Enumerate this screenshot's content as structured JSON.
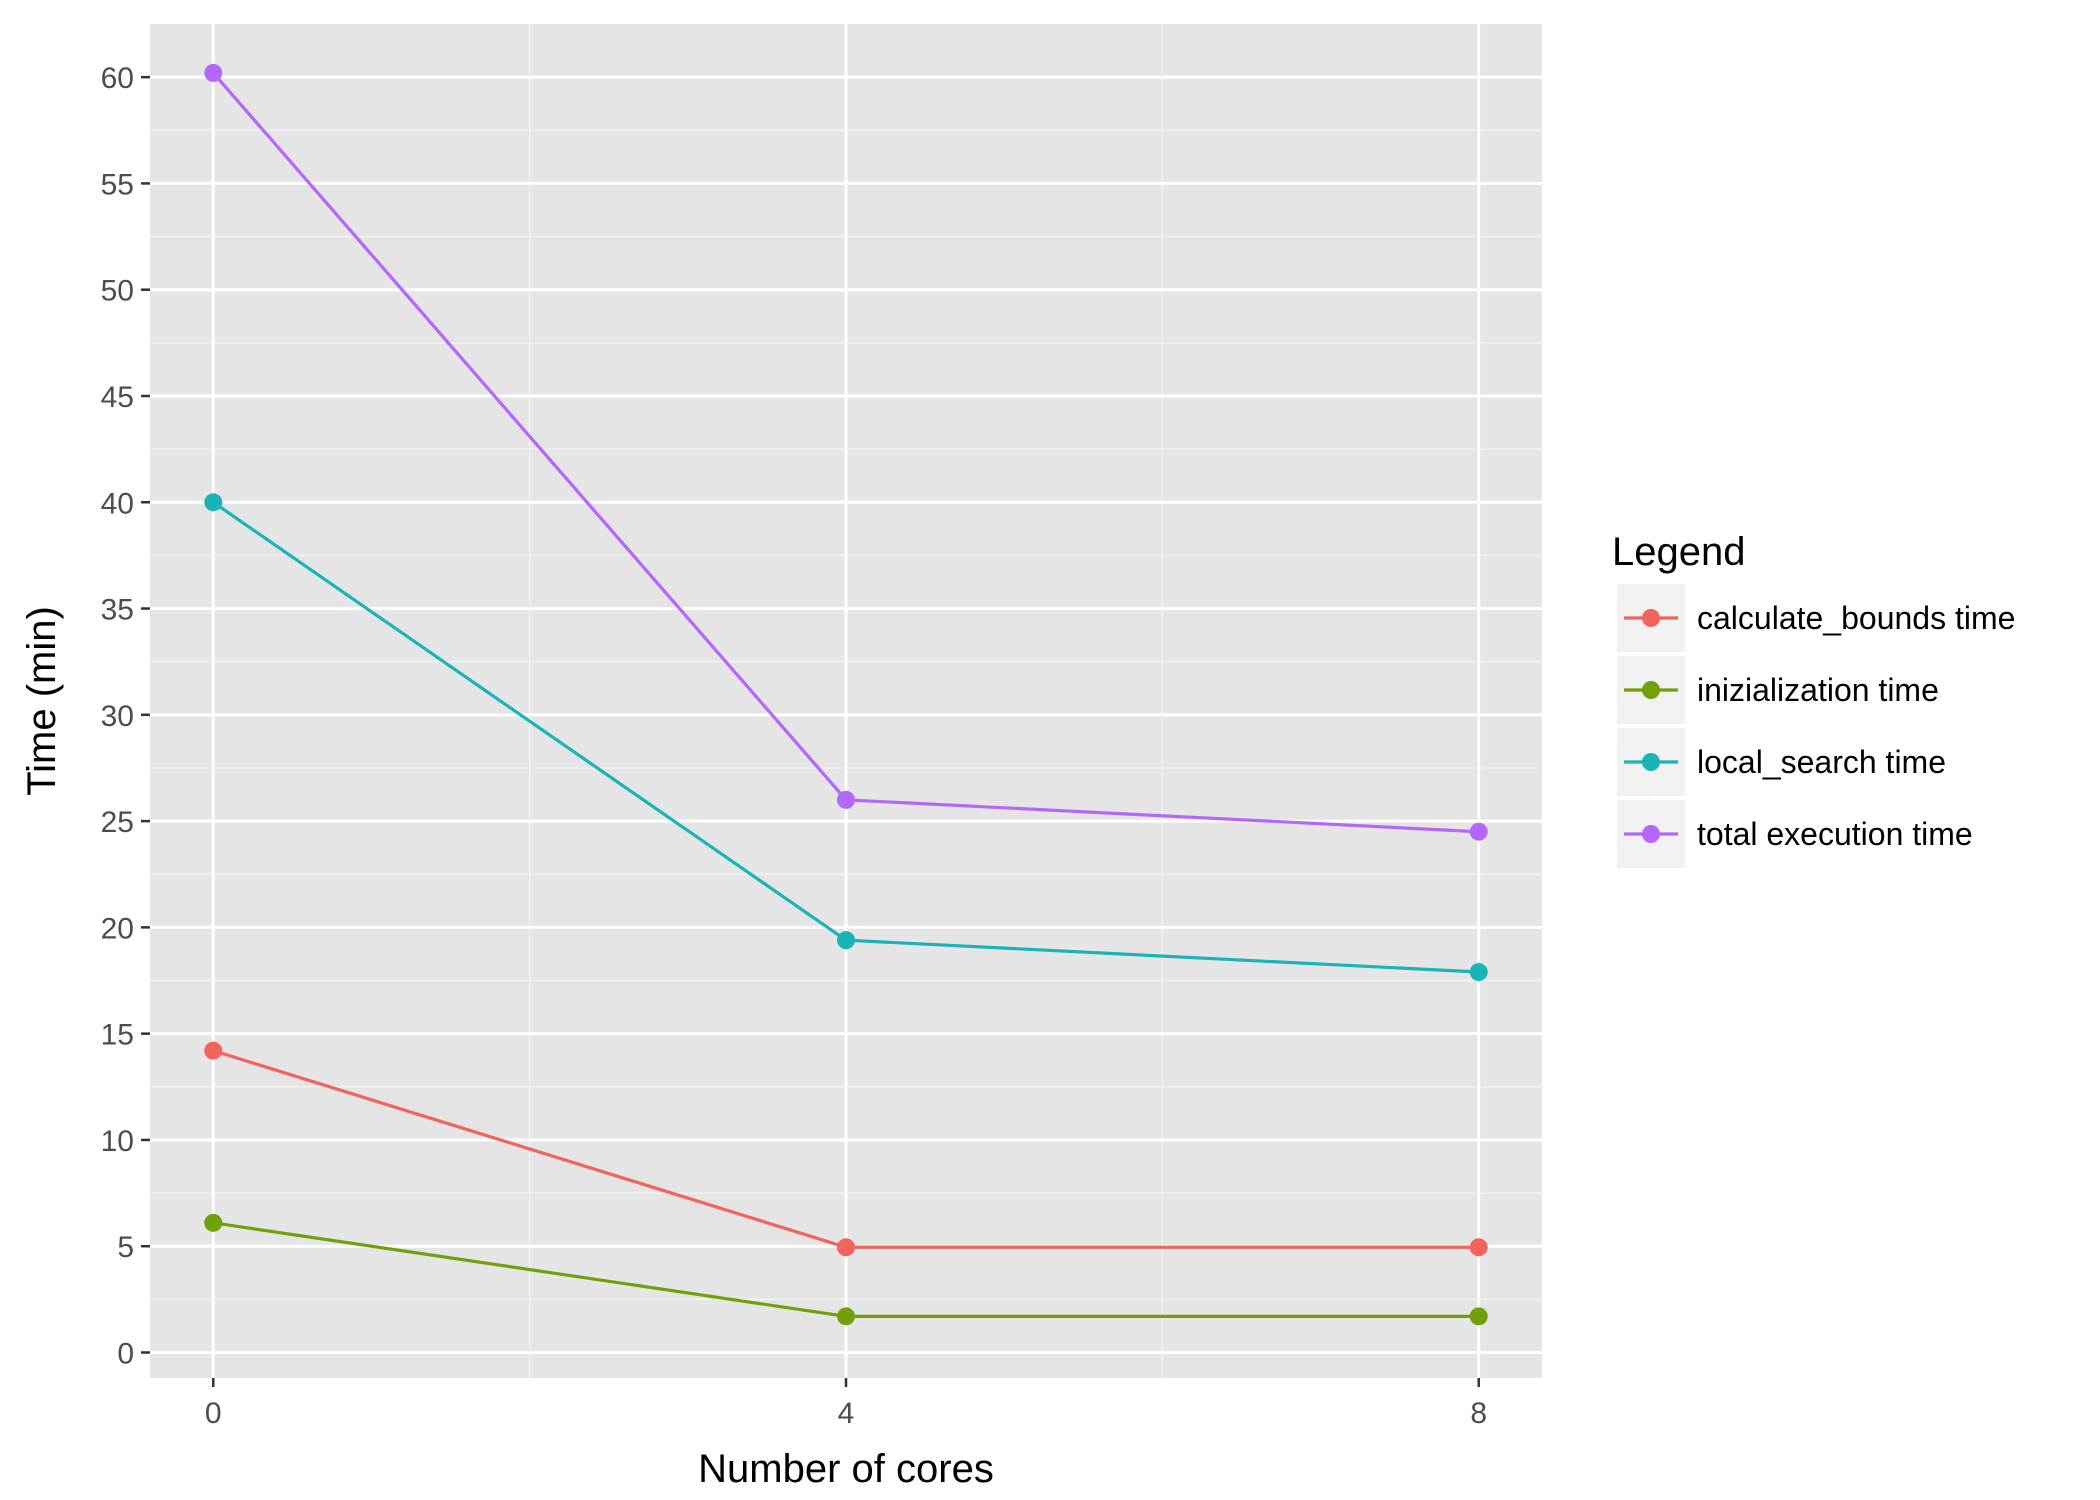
{
  "chart_data": {
    "type": "line",
    "title": "",
    "xlabel": "Number of cores",
    "ylabel": "Time (min)",
    "x": [
      0,
      4,
      8
    ],
    "x_ticks": [
      0,
      4,
      8
    ],
    "y_ticks": [
      0,
      5,
      10,
      15,
      20,
      25,
      30,
      35,
      40,
      45,
      50,
      55,
      60
    ],
    "xlim": [
      -0.4,
      8.4
    ],
    "ylim": [
      -1.2,
      62.5
    ],
    "grid": true,
    "background": "#e5e5e5",
    "legend": {
      "title": "Legend",
      "placement": "right"
    },
    "series": [
      {
        "name": "calculate_bounds time",
        "color": "#f0645c",
        "values": [
          14.2,
          4.95,
          4.95
        ]
      },
      {
        "name": "inizialization time",
        "color": "#6fa20a",
        "values": [
          6.1,
          1.7,
          1.7
        ]
      },
      {
        "name": "local_search time",
        "color": "#1ab4b8",
        "values": [
          40.0,
          19.4,
          17.9
        ]
      },
      {
        "name": "total execution time",
        "color": "#b467fa",
        "values": [
          60.2,
          26.0,
          24.5
        ]
      }
    ]
  }
}
